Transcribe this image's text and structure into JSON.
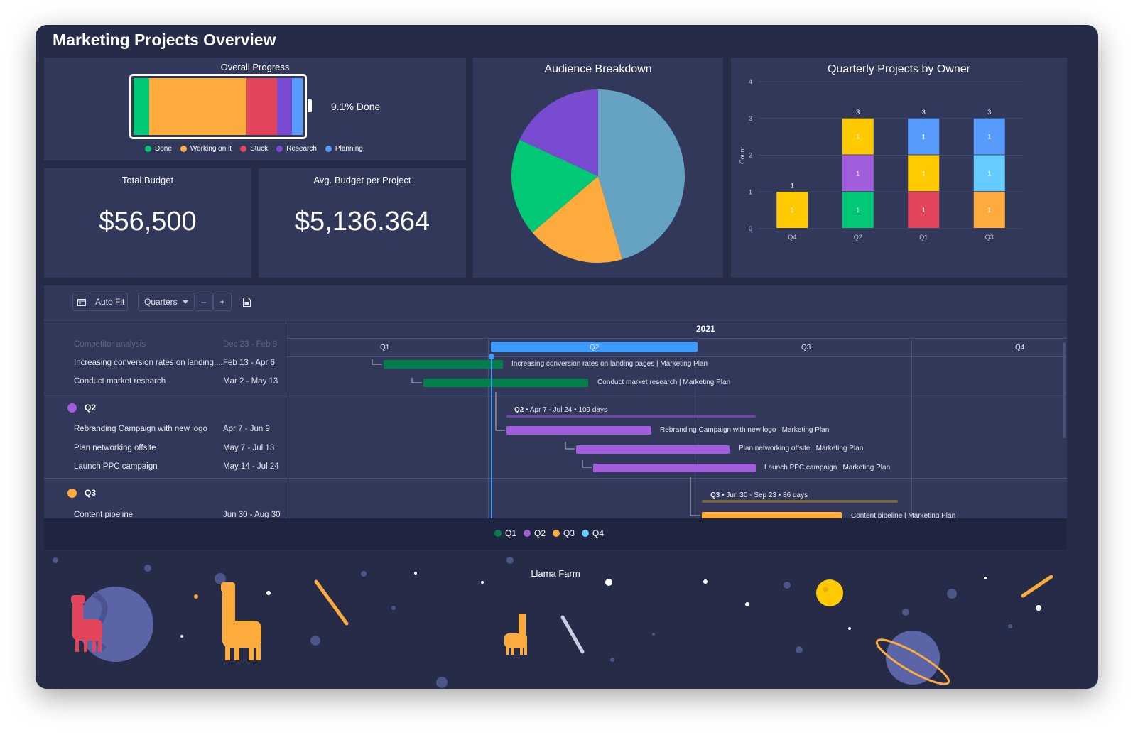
{
  "page": {
    "title": "Marketing Projects Overview"
  },
  "progress": {
    "title": "Overall Progress",
    "done_text": "9.1% Done",
    "segments": [
      {
        "label": "Done",
        "fraction": 0.091,
        "color": "#00c875"
      },
      {
        "label": "Working on it",
        "fraction": 0.575,
        "color": "#fdab3d"
      },
      {
        "label": "Stuck",
        "fraction": 0.182,
        "color": "#e2445c"
      },
      {
        "label": "Research",
        "fraction": 0.091,
        "color": "#784bd1"
      },
      {
        "label": "Planning",
        "fraction": 0.061,
        "color": "#579bfc"
      }
    ],
    "legend": [
      {
        "label": "Done",
        "color": "#00c875"
      },
      {
        "label": "Working on it",
        "color": "#fdab3d"
      },
      {
        "label": "Stuck",
        "color": "#e2445c"
      },
      {
        "label": "Research",
        "color": "#784bd1"
      },
      {
        "label": "Planning",
        "color": "#579bfc"
      }
    ]
  },
  "total_budget": {
    "title": "Total Budget",
    "value": "$56,500"
  },
  "avg_budget": {
    "title": "Avg. Budget per Project",
    "value": "$5,136.364"
  },
  "audience": {
    "title": "Audience Breakdown",
    "slices": [
      {
        "value": 45.5,
        "color": "#66a2c1"
      },
      {
        "value": 18.2,
        "color": "#fdab3d"
      },
      {
        "value": 18.2,
        "color": "#00c875"
      },
      {
        "value": 18.1,
        "color": "#784bd1"
      }
    ]
  },
  "chart_data": {
    "type": "bar",
    "title": "Quarterly Projects by Owner",
    "ylabel": "Count",
    "ylim": [
      0,
      4
    ],
    "yticks": [
      "0",
      "1",
      "2",
      "3",
      "4"
    ],
    "categories": [
      "Q4",
      "Q2",
      "Q1",
      "Q3"
    ],
    "totals": [
      "1",
      "3",
      "3",
      "3"
    ],
    "stacks": [
      [
        {
          "value": 1,
          "label": "1",
          "color": "#ffcb00"
        }
      ],
      [
        {
          "value": 1,
          "label": "1",
          "color": "#00c875"
        },
        {
          "value": 1,
          "label": "1",
          "color": "#a25ddc"
        },
        {
          "value": 1,
          "label": "1",
          "color": "#ffcb00"
        }
      ],
      [
        {
          "value": 1,
          "label": "1",
          "color": "#e2445c"
        },
        {
          "value": 1,
          "label": "1",
          "color": "#ffcb00"
        },
        {
          "value": 1,
          "label": "1",
          "color": "#579bfc"
        }
      ],
      [
        {
          "value": 1,
          "label": "1",
          "color": "#fdab3d"
        },
        {
          "value": 1,
          "label": "1",
          "color": "#66ccff"
        },
        {
          "value": 1,
          "label": "1",
          "color": "#579bfc"
        }
      ]
    ]
  },
  "toolbar": {
    "autofit": "Auto Fit",
    "zoom": "Quarters",
    "minus": "–",
    "plus": "+"
  },
  "gantt": {
    "year": "2021",
    "quarters": [
      "Q1",
      "Q2",
      "Q3",
      "Q4"
    ],
    "faded_row": {
      "name": "Competitor analysis",
      "dates": "Dec 23 - Feb 9"
    },
    "rows_q1": [
      {
        "name": "Increasing conversion rates on landing ...",
        "dates": "Feb 13 - Apr 6",
        "bar_label": "Increasing conversion rates on landing pages | Marketing Plan"
      },
      {
        "name": "Conduct market research",
        "dates": "Mar 2 - May 13",
        "bar_label": "Conduct market research | Marketing Plan"
      }
    ],
    "group_q2": {
      "name": "Q2",
      "color": "#a25ddc",
      "summary_q": "Q2",
      "summary": " • Apr 7 - Jul 24 • 109 days"
    },
    "rows_q2": [
      {
        "name": "Rebranding Campaign with new logo",
        "dates": "Apr 7 - Jun 9",
        "bar_label": "Rebranding Campaign with new logo | Marketing Plan"
      },
      {
        "name": "Plan networking offsite",
        "dates": "May 7 - Jul 13",
        "bar_label": "Plan networking offsite | Marketing Plan"
      },
      {
        "name": "Launch PPC campaign",
        "dates": "May 14 - Jul 24",
        "bar_label": "Launch PPC campaign | Marketing Plan"
      }
    ],
    "group_q3": {
      "name": "Q3",
      "color": "#fdab3d",
      "summary_q": "Q3",
      "summary": " • Jun 30 - Sep 23 • 86 days"
    },
    "rows_q3": [
      {
        "name": "Content pipeline",
        "dates": "Jun 30 - Aug 30",
        "bar_label": "Content pipeline | Marketing Plan"
      }
    ],
    "legend": [
      {
        "label": "Q1",
        "color": "#037f4c"
      },
      {
        "label": "Q2",
        "color": "#a25ddc"
      },
      {
        "label": "Q3",
        "color": "#fdab3d"
      },
      {
        "label": "Q4",
        "color": "#66ccff"
      }
    ]
  },
  "llama": {
    "title": "Llama Farm"
  }
}
